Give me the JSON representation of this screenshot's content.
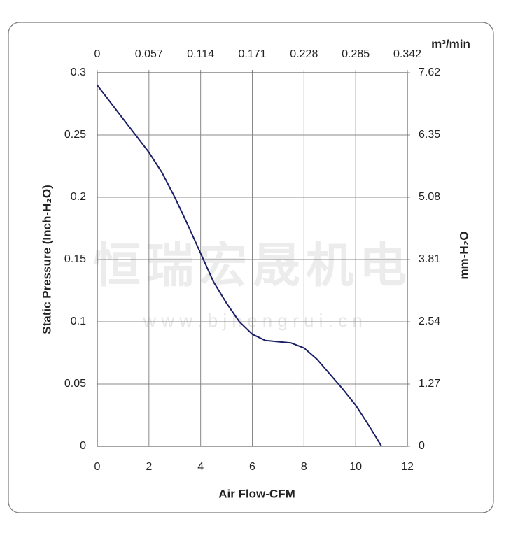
{
  "chart_data": {
    "type": "line",
    "xlabel": "Air Flow-CFM",
    "ylabel": "Static Pressure (Inch-H₂O)",
    "y2label": "mm-H₂O",
    "x2label": "m³/min",
    "watermark": [
      "恒瑞宏晟机电",
      "w w w . b j h e n g r u i . c n"
    ],
    "x": [
      0,
      1,
      2,
      2.5,
      3,
      3.5,
      4,
      4.5,
      5,
      5.5,
      6,
      6.5,
      7,
      7.5,
      8,
      8.5,
      9,
      9.5,
      10,
      10.5,
      11
    ],
    "series": [
      {
        "name": "Static Pressure",
        "color": "#1a1f66",
        "values": [
          0.29,
          0.263,
          0.236,
          0.22,
          0.2,
          0.178,
          0.155,
          0.132,
          0.115,
          0.1,
          0.09,
          0.085,
          0.084,
          0.083,
          0.079,
          0.07,
          0.058,
          0.046,
          0.033,
          0.017,
          0
        ]
      }
    ],
    "xlim": [
      0,
      12
    ],
    "xticks": [
      0,
      2,
      4,
      6,
      8,
      10,
      12
    ],
    "ylim": [
      0,
      0.3
    ],
    "yticks": [
      0,
      0.05,
      0.1,
      0.15,
      0.2,
      0.25,
      0.3
    ],
    "x2lim": [
      0,
      0.342
    ],
    "x2ticks": [
      0,
      0.057,
      0.114,
      0.171,
      0.228,
      0.285,
      0.342
    ],
    "y2lim": [
      0,
      7.62
    ],
    "y2ticks": [
      0,
      1.27,
      2.54,
      3.81,
      5.08,
      6.35,
      7.62
    ],
    "grid": true
  }
}
